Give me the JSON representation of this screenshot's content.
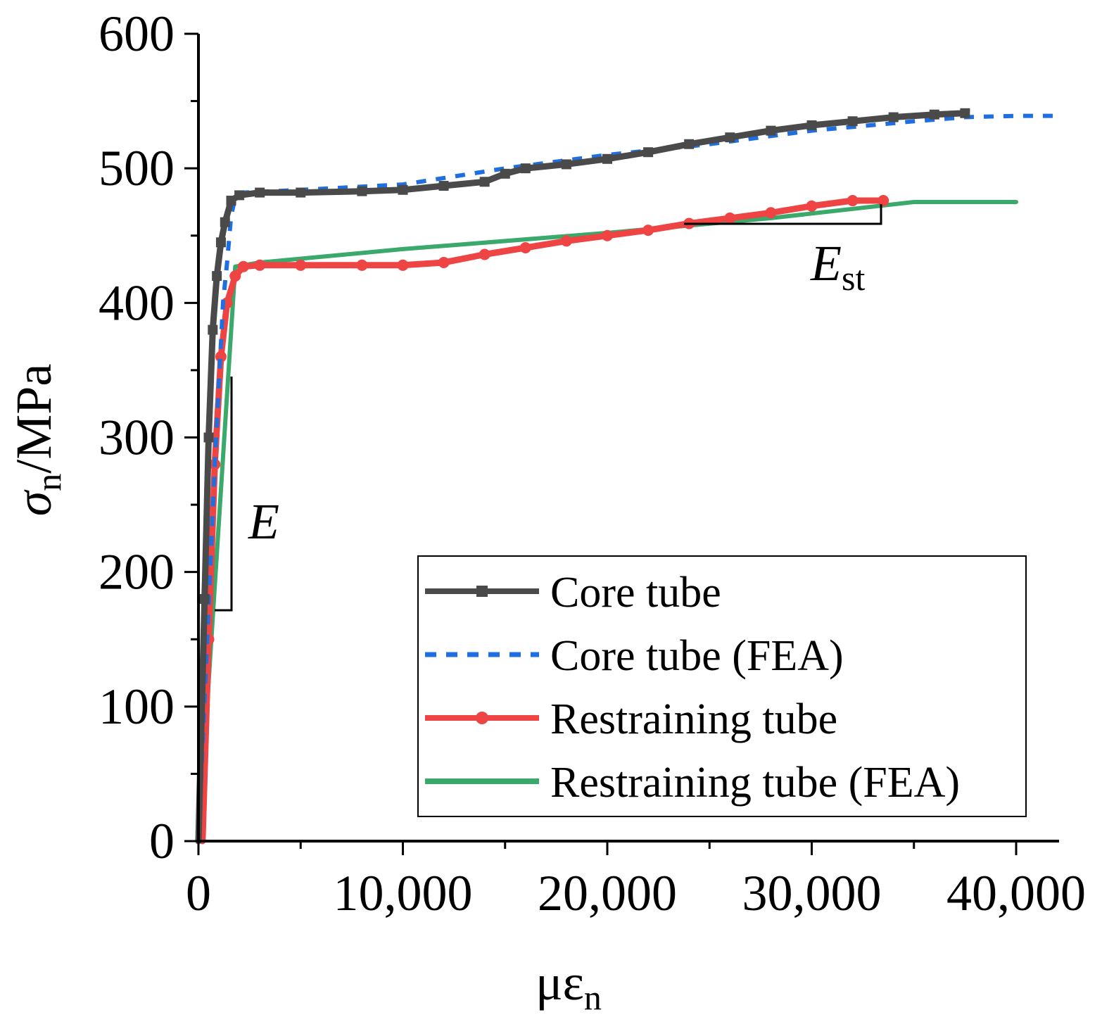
{
  "chart_data": {
    "type": "line",
    "title": "",
    "xlabel": "με",
    "xlabel_sub": "n",
    "ylabel": "σ",
    "ylabel_sub": "n",
    "ylabel_unit": "/MPa",
    "xlim": [
      0,
      42000
    ],
    "ylim": [
      0,
      600
    ],
    "xticks": [
      0,
      10000,
      20000,
      30000,
      40000
    ],
    "xtick_labels": [
      "0",
      "10,000",
      "20,000",
      "30,000",
      "40,000"
    ],
    "yticks": [
      0,
      100,
      200,
      300,
      400,
      500,
      600
    ],
    "ytick_labels": [
      "0",
      "100",
      "200",
      "300",
      "400",
      "500",
      "600"
    ],
    "grid": false,
    "legend_position": "bottom-right",
    "series": [
      {
        "name": "Core tube",
        "color": "#4a4a4a",
        "style": "solid-square-markers",
        "x": [
          0,
          300,
          500,
          700,
          900,
          1100,
          1300,
          1600,
          2000,
          3000,
          5000,
          8000,
          10000,
          12000,
          14000,
          15000,
          16000,
          18000,
          20000,
          22000,
          24000,
          26000,
          28000,
          30000,
          32000,
          34000,
          36000,
          37500
        ],
        "y": [
          0,
          180,
          300,
          380,
          420,
          445,
          460,
          476,
          480,
          482,
          482,
          483,
          484,
          487,
          490,
          496,
          500,
          503,
          507,
          512,
          518,
          523,
          528,
          532,
          535,
          538,
          540,
          541
        ]
      },
      {
        "name": "Core tube (FEA)",
        "color": "#1f6fe0",
        "style": "dotted",
        "x": [
          0,
          400,
          800,
          1200,
          1400,
          1600,
          1800,
          2200,
          5000,
          10000,
          15000,
          20000,
          25000,
          30000,
          35000,
          37500,
          40000,
          42000
        ],
        "y": [
          0,
          140,
          280,
          400,
          430,
          465,
          478,
          482,
          484,
          488,
          500,
          510,
          518,
          528,
          535,
          538,
          539,
          539
        ]
      },
      {
        "name": "Restraining tube",
        "color": "#ee4444",
        "style": "solid-circle-markers",
        "x": [
          200,
          500,
          800,
          1100,
          1400,
          1800,
          2200,
          3000,
          5000,
          8000,
          10000,
          12000,
          14000,
          16000,
          18000,
          20000,
          22000,
          24000,
          26000,
          28000,
          30000,
          32000,
          33500
        ],
        "y": [
          0,
          150,
          280,
          360,
          400,
          420,
          427,
          428,
          428,
          428,
          428,
          430,
          436,
          441,
          446,
          450,
          454,
          459,
          463,
          467,
          472,
          476,
          476
        ]
      },
      {
        "name": "Restraining tube (FEA)",
        "color": "#3aa96b",
        "style": "solid",
        "x": [
          0,
          1800,
          3000,
          10000,
          20000,
          28000,
          35000,
          40000
        ],
        "y": [
          0,
          427,
          430,
          440,
          452,
          463,
          475,
          475
        ]
      }
    ],
    "annotations": [
      {
        "text": "E",
        "note": "elastic modulus slope marker"
      },
      {
        "text": "E",
        "sub": "st",
        "note": "strain-hardening modulus slope marker"
      }
    ]
  }
}
